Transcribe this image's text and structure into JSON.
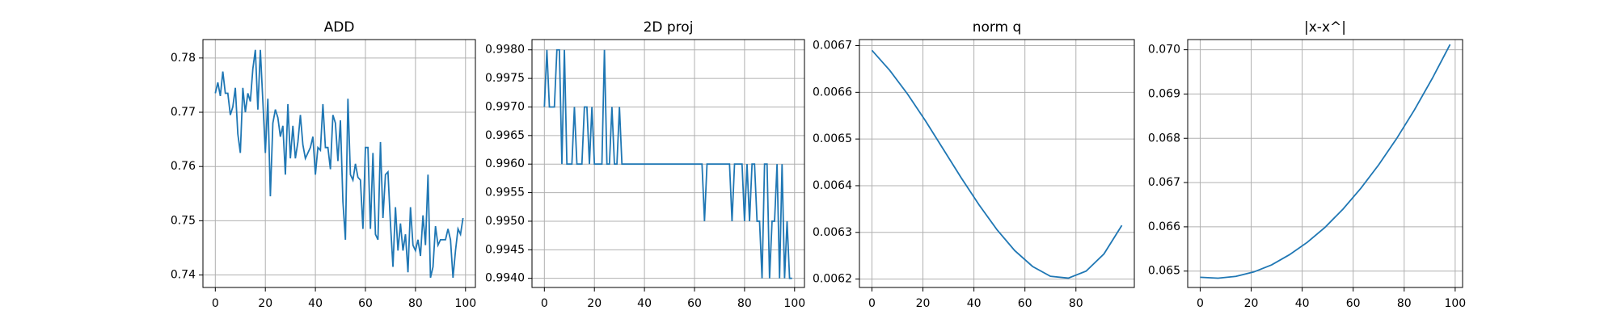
{
  "chart_data": [
    {
      "type": "line",
      "title": "ADD",
      "color": "#1f77b4",
      "grid": true,
      "x": [
        0,
        1,
        2,
        3,
        4,
        5,
        6,
        7,
        8,
        9,
        10,
        11,
        12,
        13,
        14,
        15,
        16,
        17,
        18,
        19,
        20,
        21,
        22,
        23,
        24,
        25,
        26,
        27,
        28,
        29,
        30,
        31,
        32,
        33,
        34,
        35,
        36,
        37,
        38,
        39,
        40,
        41,
        42,
        43,
        44,
        45,
        46,
        47,
        48,
        49,
        50,
        51,
        52,
        53,
        54,
        55,
        56,
        57,
        58,
        59,
        60,
        61,
        62,
        63,
        64,
        65,
        66,
        67,
        68,
        69,
        70,
        71,
        72,
        73,
        74,
        75,
        76,
        77,
        78,
        79,
        80,
        81,
        82,
        83,
        84,
        85,
        86,
        87,
        88,
        89,
        90,
        91,
        92,
        93,
        94,
        95,
        96,
        97,
        98,
        99
      ],
      "values": [
        0.7735,
        0.7755,
        0.773,
        0.7775,
        0.7735,
        0.7735,
        0.7695,
        0.771,
        0.7745,
        0.766,
        0.7625,
        0.7745,
        0.77,
        0.7735,
        0.772,
        0.778,
        0.7815,
        0.7705,
        0.7815,
        0.772,
        0.7625,
        0.7725,
        0.7545,
        0.768,
        0.7705,
        0.769,
        0.7655,
        0.7675,
        0.7585,
        0.7715,
        0.7615,
        0.7675,
        0.7615,
        0.7645,
        0.7695,
        0.764,
        0.7615,
        0.7625,
        0.7635,
        0.7655,
        0.7585,
        0.7635,
        0.763,
        0.7715,
        0.7635,
        0.7635,
        0.7595,
        0.7695,
        0.768,
        0.761,
        0.7685,
        0.7535,
        0.7465,
        0.7725,
        0.7585,
        0.7575,
        0.7605,
        0.758,
        0.7575,
        0.7485,
        0.7635,
        0.7635,
        0.7485,
        0.7625,
        0.7475,
        0.7465,
        0.7645,
        0.7505,
        0.7585,
        0.759,
        0.7495,
        0.7415,
        0.7525,
        0.7445,
        0.7495,
        0.7445,
        0.7475,
        0.7405,
        0.7525,
        0.7455,
        0.7445,
        0.7465,
        0.7435,
        0.751,
        0.7455,
        0.7585,
        0.7395,
        0.7415,
        0.749,
        0.7455,
        0.7465,
        0.7465,
        0.7465,
        0.7485,
        0.7465,
        0.7395,
        0.7445,
        0.7485,
        0.7475,
        0.7505
      ],
      "xlim": [
        -4.95,
        103.95
      ],
      "ylim": [
        0.7377,
        0.7834
      ],
      "xticks": [
        0,
        20,
        40,
        60,
        80,
        100
      ],
      "yticks": [
        0.74,
        0.75,
        0.76,
        0.77,
        0.78
      ]
    },
    {
      "type": "line",
      "title": "2D proj",
      "color": "#1f77b4",
      "grid": true,
      "x": [
        0,
        1,
        2,
        3,
        4,
        5,
        6,
        7,
        8,
        9,
        10,
        11,
        12,
        13,
        14,
        15,
        16,
        17,
        18,
        19,
        20,
        21,
        22,
        23,
        24,
        25,
        26,
        27,
        28,
        29,
        30,
        31,
        32,
        33,
        34,
        35,
        36,
        37,
        38,
        39,
        40,
        41,
        42,
        43,
        44,
        45,
        46,
        47,
        48,
        49,
        50,
        51,
        52,
        53,
        54,
        55,
        56,
        57,
        58,
        59,
        60,
        61,
        62,
        63,
        64,
        65,
        66,
        67,
        68,
        69,
        70,
        71,
        72,
        73,
        74,
        75,
        76,
        77,
        78,
        79,
        80,
        81,
        82,
        83,
        84,
        85,
        86,
        87,
        88,
        89,
        90,
        91,
        92,
        93,
        94,
        95,
        96,
        97,
        98,
        99
      ],
      "values": [
        0.997,
        0.998,
        0.997,
        0.997,
        0.997,
        0.998,
        0.998,
        0.996,
        0.998,
        0.996,
        0.996,
        0.996,
        0.997,
        0.996,
        0.996,
        0.996,
        0.997,
        0.997,
        0.996,
        0.997,
        0.996,
        0.996,
        0.996,
        0.996,
        0.998,
        0.996,
        0.996,
        0.997,
        0.996,
        0.996,
        0.997,
        0.996,
        0.996,
        0.996,
        0.996,
        0.996,
        0.996,
        0.996,
        0.996,
        0.996,
        0.996,
        0.996,
        0.996,
        0.996,
        0.996,
        0.996,
        0.996,
        0.996,
        0.996,
        0.996,
        0.996,
        0.996,
        0.996,
        0.996,
        0.996,
        0.996,
        0.996,
        0.996,
        0.996,
        0.996,
        0.996,
        0.996,
        0.996,
        0.996,
        0.995,
        0.996,
        0.996,
        0.996,
        0.996,
        0.996,
        0.996,
        0.996,
        0.996,
        0.996,
        0.996,
        0.995,
        0.996,
        0.996,
        0.996,
        0.996,
        0.995,
        0.996,
        0.995,
        0.996,
        0.996,
        0.995,
        0.995,
        0.994,
        0.996,
        0.996,
        0.994,
        0.995,
        0.995,
        0.996,
        0.994,
        0.996,
        0.994,
        0.995,
        0.994,
        0.994
      ],
      "xlim": [
        -4.95,
        103.95
      ],
      "ylim": [
        0.99384,
        0.99818
      ],
      "xticks": [
        0,
        20,
        40,
        60,
        80,
        100
      ],
      "yticks": [
        {
          "value": 0.994,
          "label": "0.9940"
        },
        0.9945,
        {
          "value": 0.995,
          "label": "0.9950"
        },
        0.9955,
        {
          "value": 0.996,
          "label": "0.9960"
        },
        0.9965,
        {
          "value": 0.997,
          "label": "0.9970"
        },
        0.9975,
        {
          "value": 0.998,
          "label": "0.9980"
        }
      ]
    },
    {
      "type": "line",
      "title": "norm q",
      "color": "#1f77b4",
      "grid": true,
      "x": [
        0,
        7,
        14,
        21,
        28,
        35,
        42,
        49,
        56,
        63,
        70,
        77,
        84,
        91,
        98
      ],
      "values": [
        0.00669,
        0.006647,
        0.006596,
        0.006539,
        0.006478,
        0.006417,
        0.006359,
        0.006306,
        0.006261,
        0.006227,
        0.006206,
        0.006202,
        0.006217,
        0.006254,
        0.006315
      ],
      "xlim": [
        -4.9,
        102.9
      ],
      "ylim": [
        0.006182,
        0.006713
      ],
      "xticks": [
        0,
        20,
        40,
        60,
        80
      ],
      "yticks": [
        0.0062,
        0.0063,
        0.0064,
        0.0065,
        0.0066,
        0.0067
      ]
    },
    {
      "type": "line",
      "title": "|x-x^|",
      "color": "#1f77b4",
      "grid": true,
      "x": [
        0,
        7,
        14,
        21,
        28,
        35,
        42,
        49,
        56,
        63,
        70,
        77,
        84,
        91,
        98
      ],
      "values": [
        0.06486,
        0.06484,
        0.06488,
        0.06498,
        0.06514,
        0.06537,
        0.06565,
        0.06599,
        0.0664,
        0.06687,
        0.0674,
        0.06799,
        0.06864,
        0.06935,
        0.07012
      ],
      "xlim": [
        -4.9,
        102.9
      ],
      "ylim": [
        0.06463,
        0.07023
      ],
      "xticks": [
        0,
        20,
        40,
        60,
        80,
        100
      ],
      "yticks": [
        0.065,
        0.066,
        0.067,
        0.068,
        0.069,
        {
          "value": 0.07,
          "label": "0.070"
        }
      ]
    }
  ]
}
